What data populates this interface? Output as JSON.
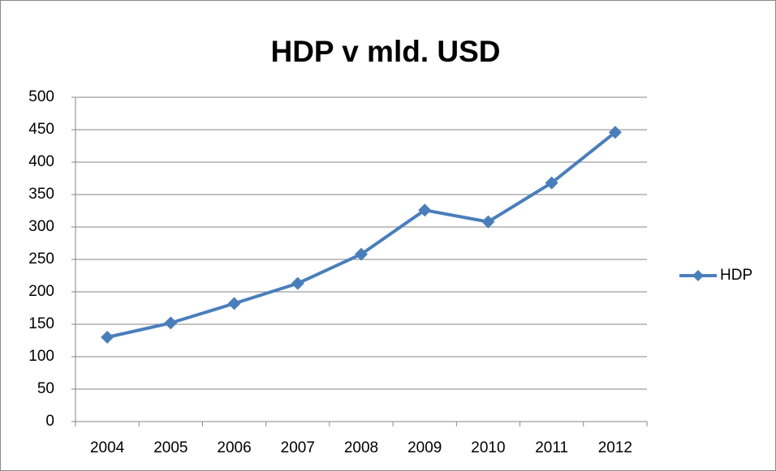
{
  "chart_data": {
    "type": "line",
    "title": "HDP v mld. USD",
    "categories": [
      "2004",
      "2005",
      "2006",
      "2007",
      "2008",
      "2009",
      "2010",
      "2011",
      "2012"
    ],
    "series": [
      {
        "name": "HDP",
        "color": "#4a7ebb",
        "values": [
          130,
          152,
          182,
          213,
          258,
          326,
          308,
          368,
          446
        ]
      }
    ],
    "ylim": [
      0,
      500
    ],
    "yticks": [
      0,
      50,
      100,
      150,
      200,
      250,
      300,
      350,
      400,
      450,
      500
    ],
    "grid": true,
    "legend": "right"
  }
}
